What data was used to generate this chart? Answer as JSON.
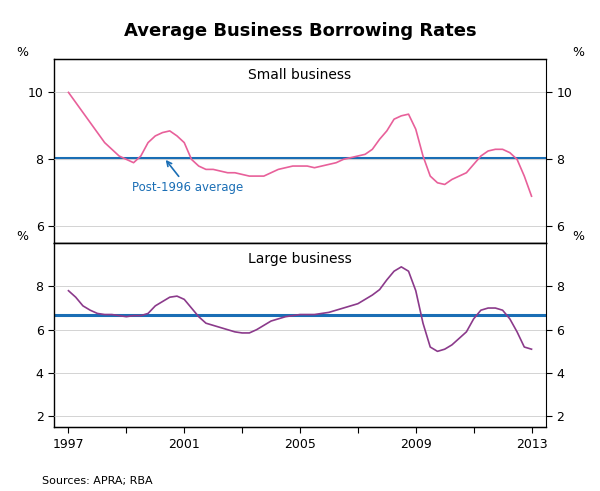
{
  "title": "Average Business Borrowing Rates",
  "source": "Sources: APRA; RBA",
  "small_business_label": "Small business",
  "large_business_label": "Large business",
  "post1996_label": "Post-1996 average",
  "small_avg": 8.05,
  "large_avg": 6.7,
  "small_color": "#e8609a",
  "large_color": "#8b3a8b",
  "avg_line_color": "#1a6eb5",
  "annotation_color": "#1a6eb5",
  "small_ylim": [
    5.5,
    11.0
  ],
  "small_yticks": [
    6,
    8,
    10
  ],
  "large_ylim": [
    1.5,
    10.0
  ],
  "large_yticks": [
    2,
    4,
    6,
    8
  ],
  "xtick_positions": [
    1997,
    1999,
    2001,
    2003,
    2005,
    2007,
    2009,
    2011,
    2013
  ],
  "xtick_labels": [
    "1997",
    "",
    "2001",
    "",
    "2005",
    "",
    "2009",
    "",
    "2013"
  ],
  "small_data": {
    "years": [
      1997.0,
      1997.25,
      1997.5,
      1997.75,
      1998.0,
      1998.25,
      1998.5,
      1998.75,
      1999.0,
      1999.25,
      1999.5,
      1999.75,
      2000.0,
      2000.25,
      2000.5,
      2000.75,
      2001.0,
      2001.25,
      2001.5,
      2001.75,
      2002.0,
      2002.25,
      2002.5,
      2002.75,
      2003.0,
      2003.25,
      2003.5,
      2003.75,
      2004.0,
      2004.25,
      2004.5,
      2004.75,
      2005.0,
      2005.25,
      2005.5,
      2005.75,
      2006.0,
      2006.25,
      2006.5,
      2006.75,
      2007.0,
      2007.25,
      2007.5,
      2007.75,
      2008.0,
      2008.25,
      2008.5,
      2008.75,
      2009.0,
      2009.25,
      2009.5,
      2009.75,
      2010.0,
      2010.25,
      2010.5,
      2010.75,
      2011.0,
      2011.25,
      2011.5,
      2011.75,
      2012.0,
      2012.25,
      2012.5,
      2012.75,
      2013.0
    ],
    "values": [
      10.0,
      9.7,
      9.4,
      9.1,
      8.8,
      8.5,
      8.3,
      8.1,
      8.0,
      7.9,
      8.1,
      8.5,
      8.7,
      8.8,
      8.85,
      8.7,
      8.5,
      8.0,
      7.8,
      7.7,
      7.7,
      7.65,
      7.6,
      7.6,
      7.55,
      7.5,
      7.5,
      7.5,
      7.6,
      7.7,
      7.75,
      7.8,
      7.8,
      7.8,
      7.75,
      7.8,
      7.85,
      7.9,
      8.0,
      8.05,
      8.1,
      8.15,
      8.3,
      8.6,
      8.85,
      9.2,
      9.3,
      9.35,
      8.9,
      8.1,
      7.5,
      7.3,
      7.25,
      7.4,
      7.5,
      7.6,
      7.85,
      8.1,
      8.25,
      8.3,
      8.3,
      8.2,
      8.0,
      7.5,
      6.9
    ]
  },
  "large_data": {
    "years": [
      1997.0,
      1997.25,
      1997.5,
      1997.75,
      1998.0,
      1998.25,
      1998.5,
      1998.75,
      1999.0,
      1999.25,
      1999.5,
      1999.75,
      2000.0,
      2000.25,
      2000.5,
      2000.75,
      2001.0,
      2001.25,
      2001.5,
      2001.75,
      2002.0,
      2002.25,
      2002.5,
      2002.75,
      2003.0,
      2003.25,
      2003.5,
      2003.75,
      2004.0,
      2004.25,
      2004.5,
      2004.75,
      2005.0,
      2005.25,
      2005.5,
      2005.75,
      2006.0,
      2006.25,
      2006.5,
      2006.75,
      2007.0,
      2007.25,
      2007.5,
      2007.75,
      2008.0,
      2008.25,
      2008.5,
      2008.75,
      2009.0,
      2009.25,
      2009.5,
      2009.75,
      2010.0,
      2010.25,
      2010.5,
      2010.75,
      2011.0,
      2011.25,
      2011.5,
      2011.75,
      2012.0,
      2012.25,
      2012.5,
      2012.75,
      2013.0
    ],
    "values": [
      7.8,
      7.5,
      7.1,
      6.9,
      6.75,
      6.7,
      6.7,
      6.65,
      6.6,
      6.65,
      6.65,
      6.75,
      7.1,
      7.3,
      7.5,
      7.55,
      7.4,
      7.0,
      6.6,
      6.3,
      6.2,
      6.1,
      6.0,
      5.9,
      5.85,
      5.85,
      6.0,
      6.2,
      6.4,
      6.5,
      6.6,
      6.65,
      6.7,
      6.7,
      6.7,
      6.75,
      6.8,
      6.9,
      7.0,
      7.1,
      7.2,
      7.4,
      7.6,
      7.85,
      8.3,
      8.7,
      8.9,
      8.7,
      7.8,
      6.3,
      5.2,
      5.0,
      5.1,
      5.3,
      5.6,
      5.9,
      6.5,
      6.9,
      7.0,
      7.0,
      6.9,
      6.5,
      5.9,
      5.2,
      5.1
    ]
  }
}
